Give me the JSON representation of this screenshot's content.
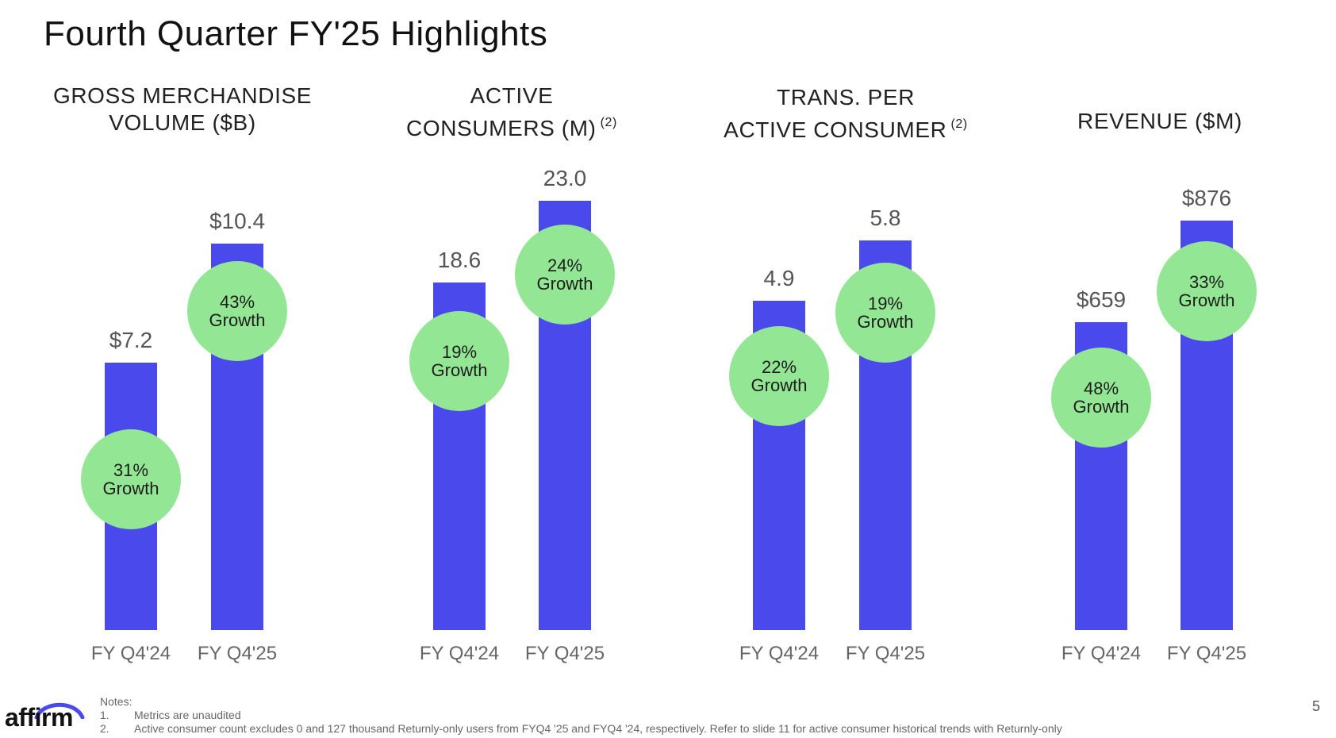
{
  "slide": {
    "title": "Fourth Quarter FY'25 Highlights",
    "page_number": "5",
    "logo_text": "affirm",
    "notes": {
      "heading": "Notes:",
      "items": [
        {
          "num": "1.",
          "text": "Metrics are unaudited"
        },
        {
          "num": "2.",
          "text": "Active consumer count excludes 0 and 127 thousand Returnly-only users from FYQ4 '25 and FYQ4 '24, respectively. Refer to slide 11 for active consumer historical trends with Returnly-only"
        }
      ]
    }
  },
  "colors": {
    "bar": "#4A4AEC",
    "growth_circle": "#93E693",
    "logo_arc": "#4A4AEC"
  },
  "chart_data": [
    {
      "type": "bar",
      "title": "GROSS MERCHANDISE VOLUME ($B)",
      "title_lines": [
        "GROSS MERCHANDISE",
        "VOLUME ($B)"
      ],
      "superscript": "",
      "categories": [
        "FY Q4'24",
        "FY Q4'25"
      ],
      "values": [
        7.2,
        10.4
      ],
      "value_labels": [
        "$7.2",
        "$10.4"
      ],
      "growth": [
        "31%",
        "43%"
      ],
      "growth_word": "Growth"
    },
    {
      "type": "bar",
      "title": "ACTIVE CONSUMERS (M) (2)",
      "title_lines": [
        "ACTIVE",
        "CONSUMERS (M)"
      ],
      "superscript": "(2)",
      "categories": [
        "FY Q4'24",
        "FY Q4'25"
      ],
      "values": [
        18.6,
        23.0
      ],
      "value_labels": [
        "18.6",
        "23.0"
      ],
      "growth": [
        "19%",
        "24%"
      ],
      "growth_word": "Growth"
    },
    {
      "type": "bar",
      "title": "TRANS. PER ACTIVE CONSUMER (2)",
      "title_lines": [
        "TRANS. PER",
        "ACTIVE CONSUMER"
      ],
      "superscript": "(2)",
      "categories": [
        "FY Q4'24",
        "FY Q4'25"
      ],
      "values": [
        4.9,
        5.8
      ],
      "value_labels": [
        "4.9",
        "5.8"
      ],
      "growth": [
        "22%",
        "19%"
      ],
      "growth_word": "Growth"
    },
    {
      "type": "bar",
      "title": "REVENUE ($M)",
      "title_lines": [
        "REVENUE ($M)"
      ],
      "superscript": "",
      "categories": [
        "FY Q4'24",
        "FY Q4'25"
      ],
      "values": [
        659,
        876
      ],
      "value_labels": [
        "$659",
        "$876"
      ],
      "growth": [
        "48%",
        "33%"
      ],
      "growth_word": "Growth"
    }
  ]
}
